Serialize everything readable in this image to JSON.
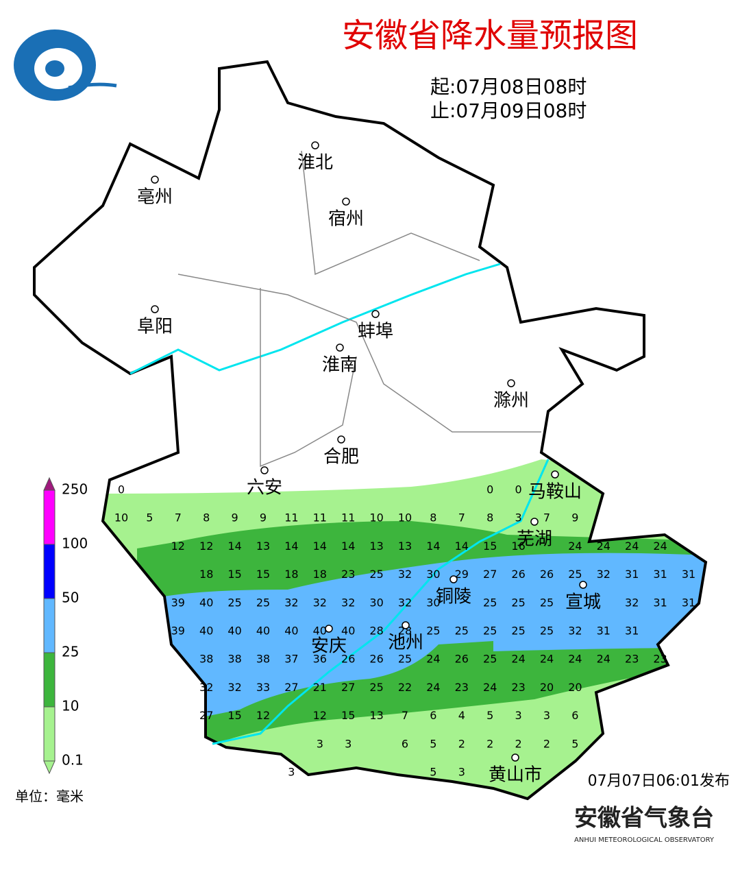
{
  "header": {
    "title": "安徽省降水量预报图",
    "start": "起:07月08日08时",
    "end": "止:07月09日08时"
  },
  "cities": [
    "淮北",
    "亳州",
    "宿州",
    "阜阳",
    "蚌埠",
    "淮南",
    "滁州",
    "合肥",
    "六安",
    "马鞍山",
    "芜湖",
    "铜陵",
    "宣城",
    "安庆",
    "池州",
    "黄山市"
  ],
  "grid_rows": [
    [
      0,
      null,
      null,
      null,
      null,
      null,
      null,
      null,
      null,
      null,
      null,
      null,
      null,
      0,
      0
    ],
    [
      10,
      5,
      7,
      8,
      9,
      9,
      11,
      11,
      11,
      10,
      10,
      8,
      7,
      8,
      3,
      7,
      9
    ],
    [
      12,
      12,
      14,
      13,
      14,
      14,
      14,
      13,
      13,
      14,
      14,
      15,
      16,
      null,
      24,
      24,
      24,
      24
    ],
    [
      18,
      15,
      15,
      18,
      18,
      23,
      25,
      32,
      30,
      29,
      27,
      26,
      26,
      25,
      32,
      31,
      31,
      31
    ],
    [
      39,
      40,
      25,
      25,
      32,
      32,
      32,
      30,
      32,
      30,
      null,
      25,
      25,
      25,
      null,
      null,
      32,
      31,
      31
    ],
    [
      39,
      40,
      40,
      40,
      40,
      40,
      40,
      28,
      28,
      25,
      25,
      25,
      25,
      25,
      32,
      31,
      31
    ],
    [
      38,
      38,
      38,
      37,
      36,
      26,
      26,
      25,
      24,
      26,
      25,
      24,
      24,
      24,
      24,
      23,
      23
    ],
    [
      32,
      32,
      33,
      27,
      21,
      27,
      25,
      22,
      24,
      23,
      24,
      23,
      20,
      20
    ],
    [
      27,
      15,
      12,
      null,
      12,
      15,
      13,
      7,
      6,
      4,
      5,
      3,
      3,
      6
    ],
    [
      3,
      3,
      null,
      6,
      5,
      2,
      2,
      2,
      2,
      5
    ],
    [
      3,
      null,
      null,
      null,
      null,
      5,
      3
    ]
  ],
  "legend": {
    "labels": [
      "250",
      "100",
      "50",
      "25",
      "10",
      "0.1"
    ],
    "unit": "单位：毫米"
  },
  "footer": {
    "issued": "07月07日06:01发布",
    "agency": "安徽省气象台",
    "agency_en": "ANHUI METEOROLOGICAL OBSERVATORY"
  }
}
